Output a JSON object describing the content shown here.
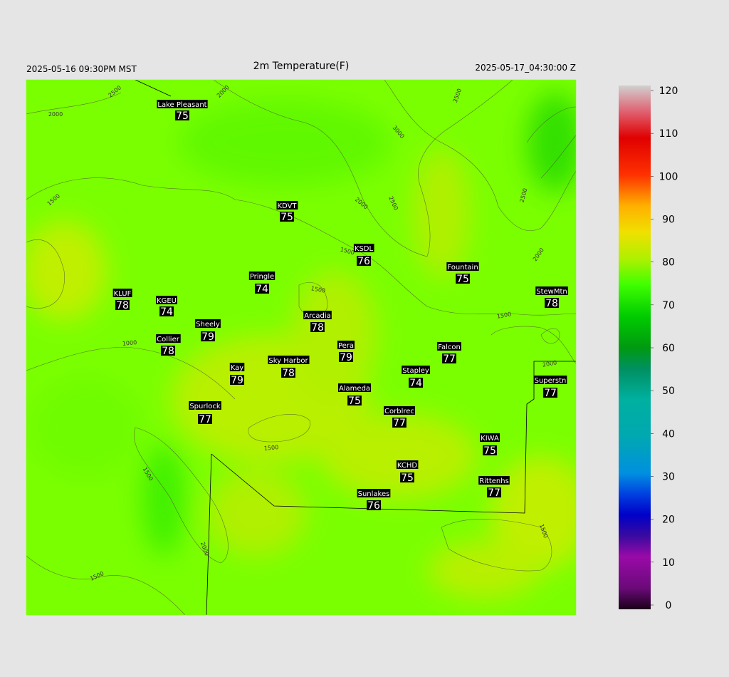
{
  "header": {
    "left": "2025-05-16 09:30PM MST",
    "title": "2m Temperature(F)",
    "right": "2025-05-17_04:30:00 Z"
  },
  "stations": [
    {
      "name": "Lake Pleasant",
      "value": 75
    },
    {
      "name": "KDVT",
      "value": 75
    },
    {
      "name": "KSDL",
      "value": 76
    },
    {
      "name": "Pringle",
      "value": 74
    },
    {
      "name": "Fountain",
      "value": 75
    },
    {
      "name": "StewMtn",
      "value": 78
    },
    {
      "name": "KLUF",
      "value": 78
    },
    {
      "name": "KGEU",
      "value": 74
    },
    {
      "name": "Arcadia",
      "value": 78
    },
    {
      "name": "Sheely",
      "value": 79
    },
    {
      "name": "Collier",
      "value": 78
    },
    {
      "name": "Pera",
      "value": 79
    },
    {
      "name": "Falcon",
      "value": 77
    },
    {
      "name": "Sky Harbor",
      "value": 78
    },
    {
      "name": "Kay",
      "value": 79
    },
    {
      "name": "Stapley",
      "value": 74
    },
    {
      "name": "Superstn",
      "value": 77
    },
    {
      "name": "Alameda",
      "value": 75
    },
    {
      "name": "Spurlock",
      "value": 77
    },
    {
      "name": "Corblrec",
      "value": 77
    },
    {
      "name": "KIWA",
      "value": 75
    },
    {
      "name": "KCHD",
      "value": 75
    },
    {
      "name": "Rittenhs",
      "value": 77
    },
    {
      "name": "Sunlakes",
      "value": 76
    }
  ],
  "contour_labels": [
    2500,
    2000,
    2000,
    3500,
    3000,
    2500,
    1500,
    2000,
    2500,
    1500,
    2000,
    1500,
    1500,
    1000,
    2000,
    1500,
    1500,
    1500,
    2000,
    1500
  ],
  "colorbar": {
    "lim": [
      0,
      120
    ],
    "ticks": [
      0,
      10,
      20,
      30,
      40,
      50,
      60,
      70,
      80,
      90,
      100,
      110,
      120
    ]
  }
}
